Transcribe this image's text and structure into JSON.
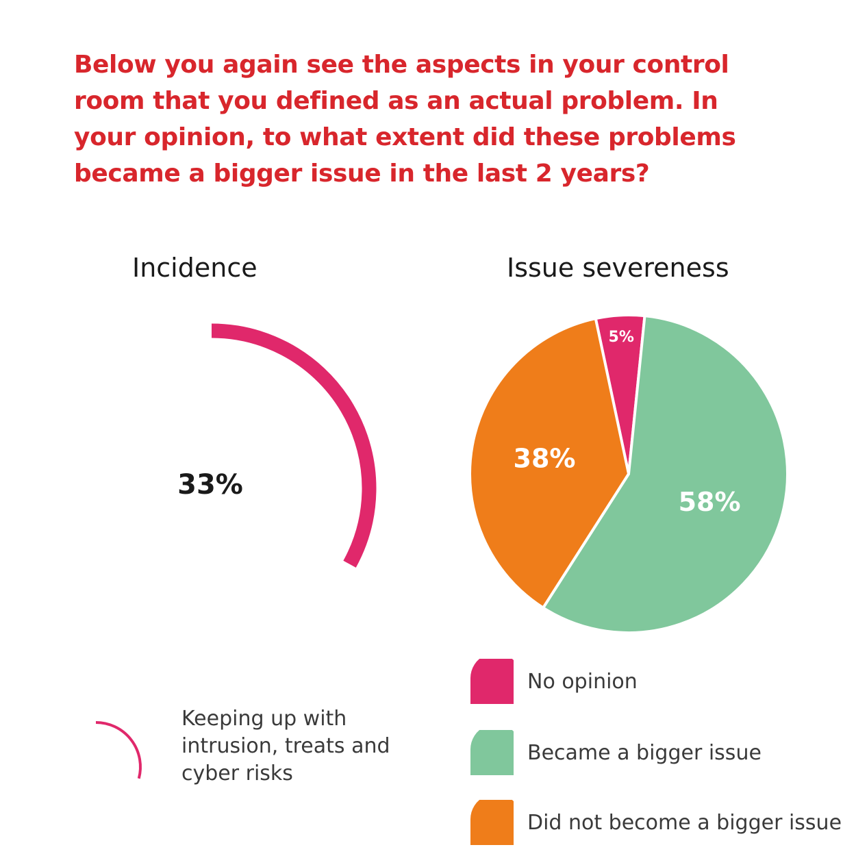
{
  "question": "Below you again see the aspects in your control room that you defined as an actual problem. In your opinion, to what extent did these problems became a bigger issue in the last 2 years?",
  "colors": {
    "question": "#d8262c",
    "no_opinion": "#e0286b",
    "bigger_issue": "#80c79c",
    "not_bigger_issue": "#ef7d1a",
    "incidence_arc": "#e0286b"
  },
  "chart_data": [
    {
      "type": "gauge",
      "title": "Incidence",
      "value": 33,
      "value_label": "33%",
      "max": 100,
      "series": [
        {
          "name": "Keeping up with intrusion, treats and cyber risks",
          "value": 33,
          "color": "#e0286b"
        }
      ],
      "legend": {
        "placement": "bottom-left"
      }
    },
    {
      "type": "pie",
      "title": "Issue severeness",
      "slices": [
        {
          "name": "No opinion",
          "value": 5,
          "label": "5%",
          "color": "#e0286b"
        },
        {
          "name": "Became a bigger issue",
          "value": 58,
          "label": "58%",
          "color": "#80c79c"
        },
        {
          "name": "Did not become a bigger issue",
          "value": 38,
          "label": "38%",
          "color": "#ef7d1a"
        }
      ],
      "legend": {
        "placement": "bottom-right"
      }
    }
  ]
}
